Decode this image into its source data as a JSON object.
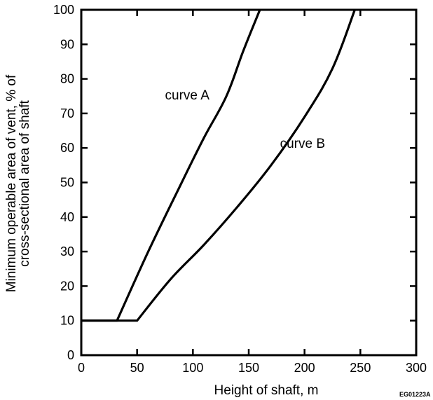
{
  "chart_data": {
    "type": "line",
    "title": "",
    "xlabel": "Height of shaft, m",
    "ylabel_lines": [
      "Minimum operable area of vent, % of",
      "cross-sectional area of shaft"
    ],
    "xlim": [
      0,
      300
    ],
    "ylim": [
      0,
      100
    ],
    "x_ticks": [
      0,
      50,
      100,
      150,
      200,
      250,
      300
    ],
    "y_ticks": [
      0,
      10,
      20,
      30,
      40,
      50,
      60,
      70,
      80,
      90,
      100
    ],
    "grid": false,
    "series": [
      {
        "name": "curve A",
        "color": "#000000",
        "x": [
          0,
          32,
          60,
          90,
          110,
          130,
          145,
          160
        ],
        "y": [
          10,
          10,
          30,
          50,
          63,
          75,
          88,
          100
        ]
      },
      {
        "name": "curve B",
        "color": "#000000",
        "x": [
          0,
          50,
          80,
          110,
          140,
          170,
          200,
          225,
          245
        ],
        "y": [
          10,
          10,
          22,
          32,
          43,
          55,
          69,
          83,
          100
        ]
      }
    ],
    "annotations": [
      {
        "text": "curve A",
        "x": 75,
        "y": 74,
        "series": 0
      },
      {
        "text": "curve B",
        "x": 178,
        "y": 60,
        "series": 1
      }
    ]
  },
  "figure_id": "EG01223A"
}
